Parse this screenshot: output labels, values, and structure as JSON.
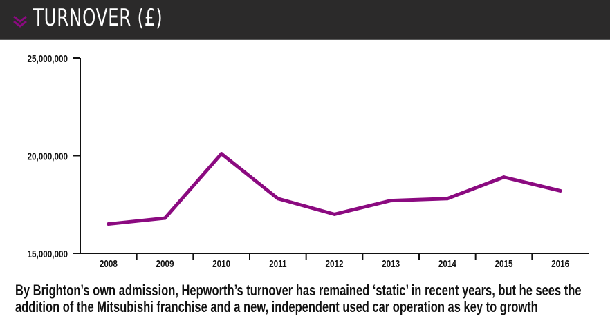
{
  "header": {
    "title": "TURNOVER (£)",
    "icon": "double-chevron-down-icon",
    "accent": "#8b0a80"
  },
  "chart_data": {
    "type": "line",
    "title": "TURNOVER (£)",
    "categories": [
      "2008",
      "2009",
      "2010",
      "2011",
      "2012",
      "2013",
      "2014",
      "2015",
      "2016"
    ],
    "values": [
      16500000,
      16800000,
      20100000,
      17800000,
      17000000,
      17700000,
      17800000,
      18900000,
      18200000
    ],
    "ylim": [
      15000000,
      25000000
    ],
    "yticks": [
      15000000,
      20000000,
      25000000
    ],
    "ytick_labels": [
      "15,000,000",
      "20,000,000",
      "25,000,000"
    ],
    "grid": false,
    "line_color": "#8b0a80"
  },
  "caption": "By Brighton’s own admission, Hepworth’s turnover has remained ‘static’ in recent years, but he sees the addition of the Mitsubishi franchise and a new, independent used car operation as key to growth"
}
